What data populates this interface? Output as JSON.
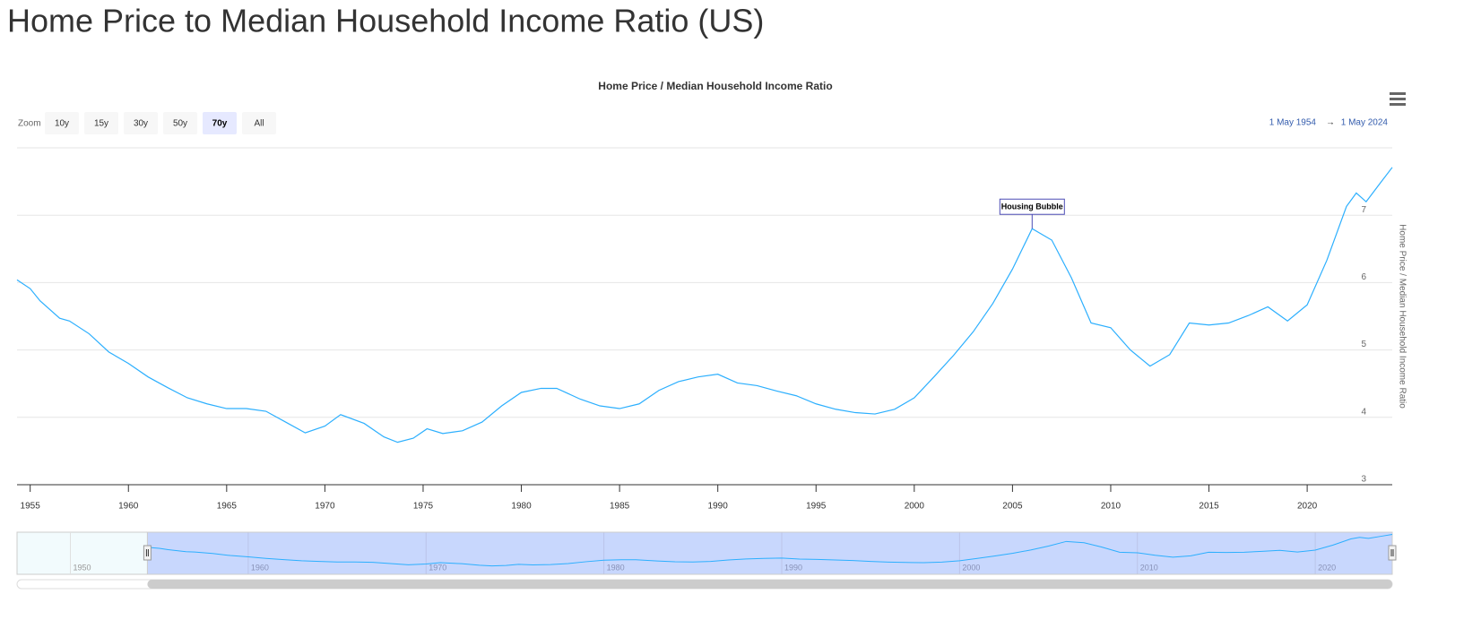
{
  "page_title": "Home Price to Median Household Income Ratio (US)",
  "chart_data": {
    "type": "line",
    "title": "Home Price / Median Household Income Ratio",
    "y_axis_title": "Home Price / Median Household Income Ratio",
    "zoom_label": "Zoom",
    "zoom_buttons": [
      "10y",
      "15y",
      "30y",
      "50y",
      "70y",
      "All"
    ],
    "zoom_selected": 4,
    "range_from": "1 May 1954",
    "range_arrow": "→",
    "range_to": "1 May 2024",
    "color": "#2caffe",
    "x": [
      1954.33,
      1955,
      1955.5,
      1956.5,
      1957,
      1958,
      1959,
      1960,
      1961,
      1962,
      1963,
      1964,
      1965,
      1966,
      1967,
      1968,
      1969,
      1970,
      1970.8,
      1972,
      1973,
      1973.7,
      1974.5,
      1975.2,
      1976,
      1977,
      1978,
      1979,
      1980,
      1981,
      1981.8,
      1983,
      1984,
      1985,
      1986,
      1987,
      1988,
      1989,
      1990,
      1991,
      1992,
      1993,
      1994,
      1995,
      1996,
      1997,
      1998,
      1999,
      2000,
      2001,
      2002,
      2003,
      2004,
      2005,
      2006,
      2007,
      2008,
      2009,
      2010,
      2011,
      2012,
      2013,
      2014,
      2015,
      2016,
      2017,
      2018,
      2019,
      2020,
      2021,
      2022,
      2022.5,
      2023,
      2023.7,
      2024.33
    ],
    "values": [
      6.04,
      5.91,
      5.73,
      5.47,
      5.43,
      5.24,
      4.97,
      4.8,
      4.6,
      4.44,
      4.29,
      4.2,
      4.13,
      4.13,
      4.09,
      3.93,
      3.77,
      3.87,
      4.04,
      3.91,
      3.71,
      3.63,
      3.69,
      3.83,
      3.76,
      3.8,
      3.93,
      4.17,
      4.37,
      4.43,
      4.43,
      4.27,
      4.17,
      4.13,
      4.2,
      4.4,
      4.53,
      4.6,
      4.64,
      4.51,
      4.47,
      4.39,
      4.32,
      4.2,
      4.12,
      4.07,
      4.05,
      4.12,
      4.29,
      4.6,
      4.92,
      5.27,
      5.69,
      6.2,
      6.8,
      6.63,
      6.07,
      5.4,
      5.33,
      5.0,
      4.76,
      4.93,
      5.4,
      5.37,
      5.4,
      5.51,
      5.64,
      5.43,
      5.67,
      6.33,
      7.13,
      7.33,
      7.2,
      7.47,
      7.71
    ],
    "xlim": [
      1954.33,
      2024.33
    ],
    "xticks": [
      1955,
      1960,
      1965,
      1970,
      1975,
      1980,
      1985,
      1990,
      1995,
      2000,
      2005,
      2010,
      2015,
      2020
    ],
    "ylim": [
      3,
      8
    ],
    "yticks": [
      3,
      4,
      5,
      6,
      7
    ],
    "grid": true,
    "annotations": [
      {
        "text": "Housing Bubble",
        "x": 2006
      }
    ],
    "navigator": {
      "xlim": [
        1947,
        2024.33
      ],
      "xticks": [
        1950,
        1960,
        1970,
        1980,
        1990,
        2000,
        2010,
        2020
      ]
    }
  }
}
